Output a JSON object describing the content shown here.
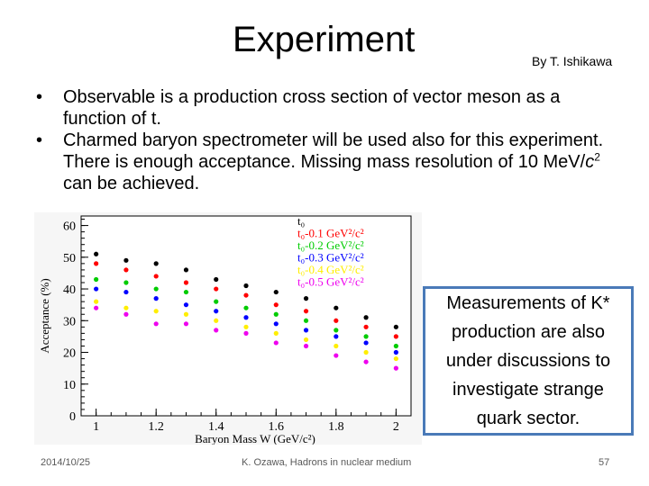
{
  "slide": {
    "title": "Experiment",
    "byline": "By T. Ishikawa",
    "bullets": [
      {
        "text": "Observable is a production cross section of vector meson as a function of t."
      },
      {
        "text_pre": "Charmed baryon spectrometer will be used also for this experiment. There is enough acceptance. Missing mass resolution of 10 MeV/",
        "text_c": "c",
        "text_sup": "2",
        "text_post": " can be achieved."
      }
    ],
    "callout": "Measurements of K* production are also under discussions to investigate strange quark sector.",
    "footer": {
      "date": "2014/10/25",
      "center": "K. Ozawa, Hadrons in nuclear medium",
      "page": "57"
    }
  },
  "chart_data": {
    "type": "scatter",
    "xlabel": "Baryon Mass W (GeV/c²)",
    "ylabel": "Acceptance (%)",
    "xlim": [
      0.95,
      2.05
    ],
    "ylim": [
      0,
      63
    ],
    "x_ticks": [
      "1",
      "1.2",
      "1.4",
      "1.6",
      "1.8",
      "2"
    ],
    "y_ticks": [
      "0",
      "10",
      "20",
      "30",
      "40",
      "50",
      "60"
    ],
    "grid": false,
    "legend_position": "top-right",
    "x": [
      1.0,
      1.1,
      1.2,
      1.3,
      1.4,
      1.5,
      1.6,
      1.7,
      1.8,
      1.9,
      2.0
    ],
    "series": [
      {
        "name": "t₀",
        "color": "#000000",
        "values": [
          51,
          49,
          48,
          46,
          43,
          41,
          39,
          37,
          34,
          31,
          28
        ]
      },
      {
        "name": "t₀-0.1 GeV²/c²",
        "color": "#ff0000",
        "values": [
          48,
          46,
          44,
          42,
          40,
          38,
          35,
          33,
          30,
          28,
          25
        ]
      },
      {
        "name": "t₀-0.2 GeV²/c²",
        "color": "#00cc00",
        "values": [
          43,
          42,
          40,
          39,
          36,
          34,
          32,
          30,
          27,
          25,
          22
        ]
      },
      {
        "name": "t₀-0.3 GeV²/c²",
        "color": "#0000ff",
        "values": [
          40,
          39,
          37,
          35,
          33,
          31,
          29,
          27,
          25,
          23,
          20
        ]
      },
      {
        "name": "t₀-0.4 GeV²/c²",
        "color": "#ffee00",
        "values": [
          36,
          34,
          33,
          32,
          30,
          28,
          26,
          24,
          22,
          20,
          18
        ]
      },
      {
        "name": "t₀-0.5 GeV²/c²",
        "color": "#ee00ee",
        "values": [
          34,
          32,
          29,
          29,
          27,
          26,
          23,
          22,
          19,
          17,
          15
        ]
      }
    ]
  }
}
